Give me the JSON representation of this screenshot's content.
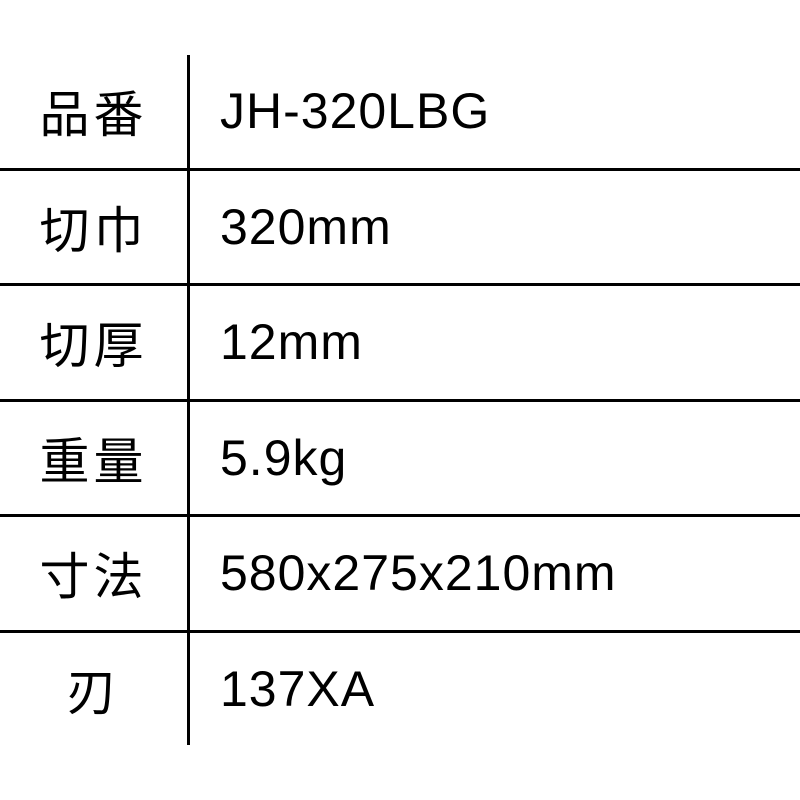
{
  "spec_table": {
    "type": "table",
    "background_color": "#ffffff",
    "border_color": "#000000",
    "border_width": 3,
    "text_color": "#000000",
    "label_fontsize": 50,
    "value_fontsize": 50,
    "label_letter_spacing": 4,
    "value_letter_spacing": 1,
    "label_column_width": 190,
    "rows": [
      {
        "label": "品番",
        "value": "JH-320LBG"
      },
      {
        "label": "切巾",
        "value": "320mm"
      },
      {
        "label": "切厚",
        "value": "12mm"
      },
      {
        "label": "重量",
        "value": "5.9kg"
      },
      {
        "label": "寸法",
        "value": "580x275x210mm"
      },
      {
        "label": "刃",
        "value": "137XA"
      }
    ]
  }
}
